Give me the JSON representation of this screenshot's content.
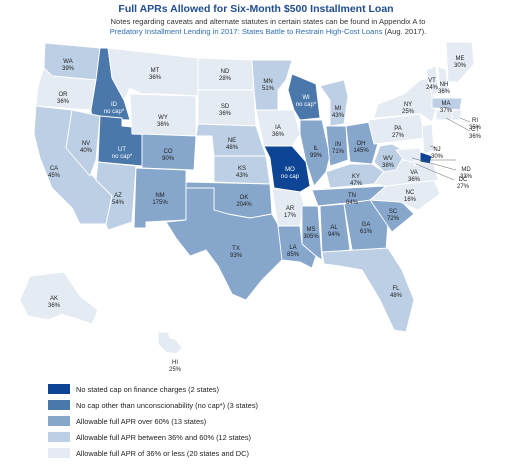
{
  "title": "Full APRs Allowed for Six-Month $500 Installment Loan",
  "note": {
    "text": "Notes regarding caveats and alternate statutes in certain states can be found in Appendix A to",
    "link": "Predatory Installment Lending in 2017: States Battle to Restrain High-Cost Loans",
    "suffix": " (Aug. 2017)."
  },
  "colors": {
    "no_cap": "#0d4594",
    "unconscionability": "#4a78ab",
    "over_60": "#86a6cc",
    "between_36_60": "#bccfe4",
    "36_or_less": "#e4ebf3"
  },
  "states": [
    {
      "abbr": "WA",
      "value": "39%",
      "category": "between_36_60"
    },
    {
      "abbr": "OR",
      "value": "36%",
      "category": "36_or_less"
    },
    {
      "abbr": "CA",
      "value": "45%",
      "category": "between_36_60"
    },
    {
      "abbr": "ID",
      "value": "no cap*",
      "category": "unconscionability"
    },
    {
      "abbr": "NV",
      "value": "40%",
      "category": "between_36_60"
    },
    {
      "abbr": "UT",
      "value": "no cap*",
      "category": "unconscionability"
    },
    {
      "abbr": "AZ",
      "value": "54%",
      "category": "between_36_60"
    },
    {
      "abbr": "MT",
      "value": "36%",
      "category": "36_or_less"
    },
    {
      "abbr": "WY",
      "value": "36%",
      "category": "36_or_less"
    },
    {
      "abbr": "CO",
      "value": "90%",
      "category": "over_60"
    },
    {
      "abbr": "NM",
      "value": "175%",
      "category": "over_60"
    },
    {
      "abbr": "ND",
      "value": "28%",
      "category": "36_or_less"
    },
    {
      "abbr": "SD",
      "value": "36%",
      "category": "36_or_less"
    },
    {
      "abbr": "NE",
      "value": "48%",
      "category": "between_36_60"
    },
    {
      "abbr": "KS",
      "value": "43%",
      "category": "between_36_60"
    },
    {
      "abbr": "OK",
      "value": "204%",
      "category": "over_60"
    },
    {
      "abbr": "TX",
      "value": "93%",
      "category": "over_60"
    },
    {
      "abbr": "MN",
      "value": "51%",
      "category": "between_36_60"
    },
    {
      "abbr": "IA",
      "value": "36%",
      "category": "36_or_less"
    },
    {
      "abbr": "MO",
      "value": "no cap",
      "category": "no_cap"
    },
    {
      "abbr": "AR",
      "value": "17%",
      "category": "36_or_less"
    },
    {
      "abbr": "LA",
      "value": "85%",
      "category": "over_60"
    },
    {
      "abbr": "WI",
      "value": "no cap*",
      "category": "unconscionability"
    },
    {
      "abbr": "IL",
      "value": "99%",
      "category": "over_60"
    },
    {
      "abbr": "MI",
      "value": "43%",
      "category": "between_36_60"
    },
    {
      "abbr": "IN",
      "value": "71%",
      "category": "over_60"
    },
    {
      "abbr": "OH",
      "value": "145%",
      "category": "over_60"
    },
    {
      "abbr": "KY",
      "value": "47%",
      "category": "between_36_60"
    },
    {
      "abbr": "TN",
      "value": "84%",
      "category": "over_60"
    },
    {
      "abbr": "MS",
      "value": "305%",
      "category": "over_60"
    },
    {
      "abbr": "AL",
      "value": "94%",
      "category": "over_60"
    },
    {
      "abbr": "GA",
      "value": "61%",
      "category": "over_60"
    },
    {
      "abbr": "FL",
      "value": "48%",
      "category": "between_36_60"
    },
    {
      "abbr": "SC",
      "value": "72%",
      "category": "over_60"
    },
    {
      "abbr": "NC",
      "value": "16%",
      "category": "36_or_less"
    },
    {
      "abbr": "VA",
      "value": "36%",
      "category": "36_or_less"
    },
    {
      "abbr": "WV",
      "value": "38%",
      "category": "between_36_60"
    },
    {
      "abbr": "PA",
      "value": "27%",
      "category": "36_or_less"
    },
    {
      "abbr": "NY",
      "value": "25%",
      "category": "36_or_less"
    },
    {
      "abbr": "VT",
      "value": "24%",
      "category": "36_or_less"
    },
    {
      "abbr": "NH",
      "value": "36%",
      "category": "36_or_less"
    },
    {
      "abbr": "ME",
      "value": "30%",
      "category": "36_or_less"
    },
    {
      "abbr": "MA",
      "value": "37%",
      "category": "between_36_60"
    },
    {
      "abbr": "RI",
      "value": "35%",
      "category": "36_or_less"
    },
    {
      "abbr": "CT",
      "value": "36%",
      "category": "36_or_less"
    },
    {
      "abbr": "NJ",
      "value": "30%",
      "category": "36_or_less"
    },
    {
      "abbr": "DE",
      "value": "no cap",
      "category": "no_cap"
    },
    {
      "abbr": "MD",
      "value": "33%",
      "category": "36_or_less"
    },
    {
      "abbr": "DC",
      "value": "27%",
      "category": "36_or_less"
    },
    {
      "abbr": "AK",
      "value": "36%",
      "category": "36_or_less"
    },
    {
      "abbr": "HI",
      "value": "25%",
      "category": "36_or_less"
    }
  ],
  "legend": [
    {
      "key": "no_cap",
      "label": "No stated cap on finance charges (2 states)"
    },
    {
      "key": "unconscionability",
      "label": "No cap other than unconscionability (no cap*) (3 states)"
    },
    {
      "key": "over_60",
      "label": "Allowable full APR over 60% (13 states)"
    },
    {
      "key": "between_36_60",
      "label": "Allowable full APR between 36% and 60% (12 states)"
    },
    {
      "key": "36_or_less",
      "label": "Allowable full APR of 36% or less (20 states and DC)"
    }
  ]
}
